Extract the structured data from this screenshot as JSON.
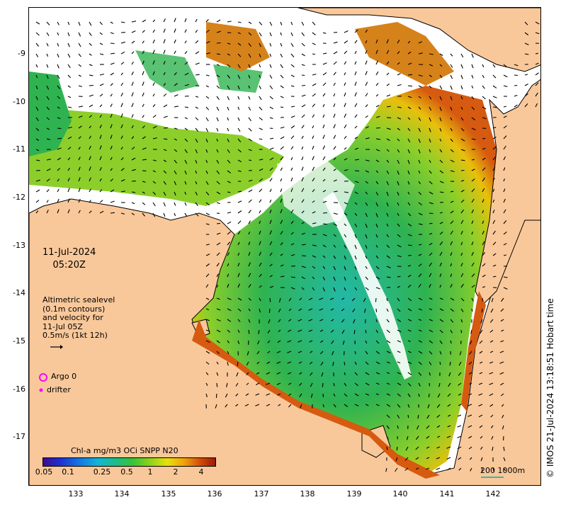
{
  "datetime": {
    "date": "11-Jul-2024",
    "time": "05:20Z"
  },
  "altimetry_note": [
    "Altimetric sealevel",
    "(0.1m contours)",
    "and velocity for",
    "11-Jul 05Z",
    "0.5m/s (1kt 12h)"
  ],
  "legend": {
    "argo": "Argo 0",
    "drifter": "drifter"
  },
  "colorbar": {
    "title": "Chl-a mg/m3 OCi SNPP N20",
    "ticks": [
      "0.05",
      "0.1",
      "0.25",
      "0.5",
      "1",
      "2",
      "4"
    ]
  },
  "scalebar": {
    "label": "200  1000m"
  },
  "credit": "© IMOS 21-Jul-2024 13:18:51 Hobart time",
  "axes": {
    "lon_ticks": [
      "133",
      "134",
      "135",
      "136",
      "137",
      "138",
      "139",
      "140",
      "141",
      "142"
    ],
    "lat_ticks": [
      "-9",
      "-10",
      "-11",
      "-12",
      "-13",
      "-14",
      "-15",
      "-16",
      "-17"
    ]
  },
  "colors": {
    "land": "#f9c89a",
    "no_data": "#ffffff",
    "high_chl": "#d65a10",
    "mid_chl": "#8ccf2a",
    "low_chl": "#2fb350",
    "clear_water": "#22b9a8",
    "argo": "#ff00ff",
    "drifter": "#ff00ff"
  }
}
